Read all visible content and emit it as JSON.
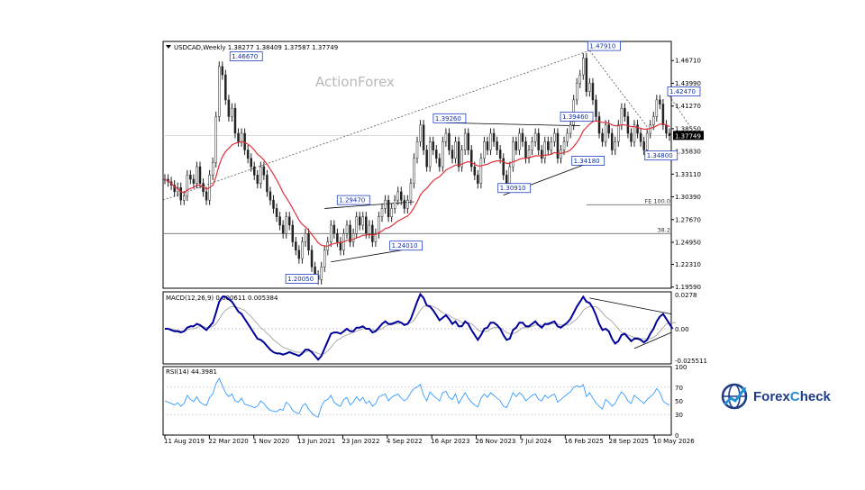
{
  "chart_data": [
    {
      "type": "line",
      "panel": "price",
      "symbol_label": "USDCAD,Weekly",
      "ohlc_label": "1.38277 1.38409 1.37587 1.37749",
      "watermark": "ActionForex",
      "last_price": "1.37749",
      "y_ticks": [
        "1.46710",
        "1.43990",
        "1.41270",
        "1.38550",
        "1.35830",
        "1.33110",
        "1.30390",
        "1.27670",
        "1.24950",
        "1.22310",
        "1.19590"
      ],
      "ylim": [
        1.1945,
        1.49
      ],
      "x_ticks": [
        "11 Aug 2019",
        "22 Mar 2020",
        "1 Nov 2020",
        "13 Jun 2021",
        "23 Jan 2022",
        "4 Sep 2022",
        "16 Apr 2023",
        "26 Nov 2023",
        "7 Jul 2024",
        "16 Feb 2025",
        "28 Sep 2025",
        "10 May 2026"
      ],
      "series": [
        {
          "values": [
            1.325,
            1.322,
            1.318,
            1.31,
            1.315,
            1.3,
            1.305,
            1.33,
            1.325,
            1.32,
            1.34,
            1.32,
            1.31,
            1.3,
            1.33,
            1.345,
            1.4,
            1.46,
            1.45,
            1.42,
            1.4,
            1.41,
            1.38,
            1.37,
            1.38,
            1.36,
            1.35,
            1.34,
            1.33,
            1.32,
            1.34,
            1.33,
            1.31,
            1.3,
            1.29,
            1.28,
            1.27,
            1.26,
            1.28,
            1.27,
            1.25,
            1.24,
            1.23,
            1.25,
            1.26,
            1.24,
            1.22,
            1.21,
            1.205,
            1.22,
            1.24,
            1.25,
            1.27,
            1.26,
            1.25,
            1.24,
            1.26,
            1.27,
            1.25,
            1.26,
            1.28,
            1.27,
            1.28,
            1.26,
            1.27,
            1.25,
            1.26,
            1.28,
            1.29,
            1.3,
            1.28,
            1.29,
            1.3,
            1.31,
            1.3,
            1.29,
            1.3,
            1.32,
            1.35,
            1.37,
            1.39,
            1.36,
            1.34,
            1.37,
            1.36,
            1.35,
            1.34,
            1.37,
            1.38,
            1.36,
            1.35,
            1.37,
            1.34,
            1.36,
            1.38,
            1.36,
            1.34,
            1.33,
            1.32,
            1.35,
            1.37,
            1.36,
            1.38,
            1.37,
            1.36,
            1.35,
            1.33,
            1.32,
            1.34,
            1.37,
            1.36,
            1.38,
            1.37,
            1.35,
            1.36,
            1.37,
            1.38,
            1.36,
            1.35,
            1.37,
            1.36,
            1.37,
            1.38,
            1.35,
            1.36,
            1.37,
            1.38,
            1.39,
            1.42,
            1.44,
            1.45,
            1.47,
            1.43,
            1.44,
            1.42,
            1.4,
            1.38,
            1.37,
            1.39,
            1.38,
            1.36,
            1.37,
            1.39,
            1.41,
            1.4,
            1.38,
            1.37,
            1.39,
            1.38,
            1.37,
            1.36,
            1.38,
            1.39,
            1.4,
            1.42,
            1.415,
            1.39,
            1.38,
            1.377
          ]
        },
        {
          "name": "",
          "color": "#e0303a",
          "values": [
            1.325,
            1.323,
            1.32,
            1.316,
            1.314,
            1.31,
            1.309,
            1.312,
            1.314,
            1.315,
            1.318,
            1.318,
            1.316,
            1.313,
            1.315,
            1.318,
            1.328,
            1.342,
            1.352,
            1.358,
            1.362,
            1.366,
            1.368,
            1.369,
            1.37,
            1.369,
            1.367,
            1.364,
            1.36,
            1.355,
            1.352,
            1.348,
            1.343,
            1.337,
            1.331,
            1.324,
            1.317,
            1.309,
            1.303,
            1.297,
            1.29,
            1.283,
            1.276,
            1.271,
            1.268,
            1.264,
            1.259,
            1.254,
            1.249,
            1.246,
            1.245,
            1.245,
            1.247,
            1.248,
            1.249,
            1.249,
            1.25,
            1.252,
            1.252,
            1.253,
            1.255,
            1.256,
            1.258,
            1.258,
            1.259,
            1.258,
            1.259,
            1.261,
            1.263,
            1.266,
            1.267,
            1.269,
            1.272,
            1.275,
            1.277,
            1.279,
            1.281,
            1.285,
            1.291,
            1.298,
            1.306,
            1.311,
            1.314,
            1.319,
            1.323,
            1.326,
            1.328,
            1.332,
            1.336,
            1.338,
            1.34,
            1.342,
            1.342,
            1.343,
            1.345,
            1.346,
            1.345,
            1.343,
            1.341,
            1.341,
            1.342,
            1.343,
            1.345,
            1.346,
            1.347,
            1.347,
            1.346,
            1.344,
            1.344,
            1.346,
            1.347,
            1.349,
            1.35,
            1.35,
            1.351,
            1.352,
            1.353,
            1.353,
            1.353,
            1.354,
            1.354,
            1.355,
            1.357,
            1.356,
            1.356,
            1.357,
            1.358,
            1.36,
            1.364,
            1.369,
            1.375,
            1.383,
            1.387,
            1.391,
            1.394,
            1.395,
            1.394,
            1.393,
            1.393,
            1.392,
            1.39,
            1.389,
            1.389,
            1.39,
            1.39,
            1.389,
            1.388,
            1.388,
            1.387,
            1.386,
            1.385,
            1.385,
            1.386,
            1.387,
            1.389,
            1.391,
            1.391,
            1.39,
            1.388
          ]
        }
      ],
      "annotations": [
        {
          "text": "1.46670",
          "x": 17,
          "y": 1.4667,
          "anchor": "start",
          "dx": 12
        },
        {
          "text": "1.20050",
          "x": 48,
          "y": 1.2005,
          "anchor": "start",
          "dx": -36
        },
        {
          "text": "1.29470",
          "x": 63,
          "y": 1.2947,
          "anchor": "start",
          "dx": -32
        },
        {
          "text": "1.24010",
          "x": 71,
          "y": 1.2401,
          "anchor": "start",
          "dx": -2
        },
        {
          "text": "1.39260",
          "x": 88,
          "y": 1.3926,
          "anchor": "start",
          "dx": -14
        },
        {
          "text": "1.30910",
          "x": 106,
          "y": 1.3091,
          "anchor": "start",
          "dx": -6
        },
        {
          "text": "1.39460",
          "x": 125,
          "y": 1.3946,
          "anchor": "start",
          "dx": -4
        },
        {
          "text": "1.34180",
          "x": 128,
          "y": 1.3418,
          "anchor": "start",
          "dx": -2
        },
        {
          "text": "1.47910",
          "x": 133,
          "y": 1.4791,
          "anchor": "start",
          "dx": -2
        },
        {
          "text": "1.34800",
          "x": 152,
          "y": 1.348,
          "anchor": "start",
          "dx": -6
        },
        {
          "text": "1.42470",
          "x": 158,
          "y": 1.4247,
          "anchor": "start",
          "dx": -2
        },
        {
          "text": "FE 100.0",
          "x": 162,
          "y": 1.2945,
          "anchor": "end",
          "dx": 0
        },
        {
          "text": "38.2",
          "x": 162,
          "y": 1.26,
          "anchor": "end",
          "dx": 0
        }
      ]
    },
    {
      "type": "line",
      "panel": "macd",
      "label": "MACD(12,26,9) 0.000611 0.005384",
      "y_ticks": [
        "0.0278",
        "0.00",
        "-0.025511"
      ],
      "ylim": [
        -0.0285,
        0.03
      ],
      "series": [
        {
          "color": "#000099",
          "values": [
            0.0,
            0.0,
            -0.001,
            -0.002,
            -0.002,
            -0.003,
            -0.002,
            0.001,
            0.002,
            0.002,
            0.004,
            0.003,
            0.001,
            -0.001,
            0.002,
            0.005,
            0.013,
            0.022,
            0.026,
            0.026,
            0.024,
            0.022,
            0.018,
            0.014,
            0.012,
            0.008,
            0.004,
            0.0,
            -0.004,
            -0.008,
            -0.009,
            -0.011,
            -0.014,
            -0.017,
            -0.019,
            -0.02,
            -0.02,
            -0.021,
            -0.02,
            -0.019,
            -0.02,
            -0.021,
            -0.022,
            -0.02,
            -0.017,
            -0.017,
            -0.019,
            -0.022,
            -0.025,
            -0.022,
            -0.016,
            -0.01,
            -0.004,
            -0.003,
            -0.003,
            -0.004,
            -0.002,
            0.0,
            -0.002,
            -0.002,
            0.001,
            0.001,
            0.002,
            0.0,
            0.0,
            -0.003,
            -0.002,
            0.001,
            0.004,
            0.006,
            0.004,
            0.004,
            0.005,
            0.006,
            0.005,
            0.003,
            0.004,
            0.008,
            0.015,
            0.022,
            0.028,
            0.025,
            0.019,
            0.018,
            0.015,
            0.011,
            0.007,
            0.009,
            0.011,
            0.008,
            0.004,
            0.006,
            0.002,
            0.002,
            0.006,
            0.004,
            -0.001,
            -0.005,
            -0.009,
            -0.005,
            0.0,
            0.001,
            0.005,
            0.005,
            0.003,
            0.0,
            -0.005,
            -0.009,
            -0.008,
            -0.001,
            0.001,
            0.005,
            0.005,
            0.002,
            0.002,
            0.004,
            0.006,
            0.003,
            0.001,
            0.004,
            0.004,
            0.005,
            0.006,
            0.002,
            0.001,
            0.003,
            0.005,
            0.008,
            0.013,
            0.018,
            0.022,
            0.026,
            0.022,
            0.021,
            0.017,
            0.011,
            0.004,
            -0.001,
            0.0,
            -0.002,
            -0.008,
            -0.012,
            -0.01,
            -0.005,
            -0.004,
            -0.007,
            -0.01,
            -0.008,
            -0.008,
            -0.009,
            -0.011,
            -0.009,
            -0.004,
            0.0,
            0.006,
            0.01,
            0.012,
            0.008,
            0.004,
            0.0
          ]
        },
        {
          "color": "#999999",
          "values": [
            0.0,
            0.0,
            0.0,
            -0.001,
            -0.001,
            -0.002,
            -0.002,
            -0.001,
            0.0,
            0.0,
            0.001,
            0.002,
            0.002,
            0.001,
            0.001,
            0.002,
            0.004,
            0.008,
            0.012,
            0.015,
            0.017,
            0.018,
            0.018,
            0.017,
            0.016,
            0.015,
            0.012,
            0.01,
            0.007,
            0.004,
            0.001,
            -0.001,
            -0.004,
            -0.006,
            -0.009,
            -0.011,
            -0.013,
            -0.015,
            -0.016,
            -0.017,
            -0.018,
            -0.019,
            -0.019,
            -0.019,
            -0.019,
            -0.018,
            -0.018,
            -0.019,
            -0.02,
            -0.021,
            -0.02,
            -0.018,
            -0.015,
            -0.012,
            -0.009,
            -0.008,
            -0.006,
            -0.005,
            -0.004,
            -0.003,
            -0.002,
            -0.001,
            0.0,
            0.0,
            0.0,
            -0.001,
            -0.001,
            -0.001,
            0.0,
            0.002,
            0.003,
            0.003,
            0.004,
            0.004,
            0.005,
            0.004,
            0.004,
            0.005,
            0.007,
            0.011,
            0.015,
            0.018,
            0.019,
            0.019,
            0.018,
            0.017,
            0.015,
            0.013,
            0.012,
            0.011,
            0.009,
            0.008,
            0.007,
            0.005,
            0.005,
            0.005,
            0.004,
            0.002,
            -0.001,
            -0.002,
            -0.002,
            -0.002,
            0.0,
            0.001,
            0.001,
            0.001,
            -0.001,
            -0.003,
            -0.004,
            -0.004,
            -0.003,
            -0.001,
            0.001,
            0.001,
            0.001,
            0.002,
            0.003,
            0.003,
            0.003,
            0.003,
            0.003,
            0.004,
            0.004,
            0.004,
            0.003,
            0.003,
            0.003,
            0.004,
            0.006,
            0.008,
            0.011,
            0.015,
            0.017,
            0.018,
            0.018,
            0.018,
            0.016,
            0.013,
            0.01,
            0.008,
            0.006,
            0.003,
            0.0,
            -0.003,
            -0.004,
            -0.005,
            -0.006,
            -0.007,
            -0.007,
            -0.008,
            -0.008,
            -0.008,
            -0.008,
            -0.007,
            -0.005,
            -0.002,
            0.001,
            0.004,
            0.005,
            0.005,
            0.005
          ]
        }
      ]
    },
    {
      "type": "line",
      "panel": "rsi",
      "label": "RSI(14) 44.3981",
      "y_ticks": [
        "100",
        "70",
        "50",
        "30",
        "0"
      ],
      "ylim": [
        0,
        100
      ],
      "series": [
        {
          "color": "#1e90ff",
          "values": [
            50,
            48,
            46,
            44,
            47,
            42,
            46,
            58,
            52,
            49,
            56,
            48,
            45,
            43,
            55,
            60,
            75,
            83,
            72,
            62,
            56,
            60,
            50,
            48,
            54,
            45,
            44,
            42,
            40,
            42,
            50,
            46,
            40,
            36,
            35,
            34,
            38,
            36,
            48,
            44,
            36,
            33,
            31,
            42,
            46,
            38,
            32,
            28,
            26,
            42,
            50,
            52,
            58,
            48,
            44,
            42,
            52,
            55,
            44,
            48,
            56,
            50,
            55,
            46,
            50,
            42,
            46,
            56,
            58,
            60,
            50,
            55,
            58,
            60,
            54,
            50,
            54,
            62,
            68,
            70,
            74,
            58,
            50,
            63,
            58,
            54,
            50,
            62,
            64,
            55,
            52,
            60,
            46,
            54,
            62,
            54,
            48,
            44,
            41,
            54,
            60,
            55,
            62,
            58,
            54,
            50,
            42,
            40,
            50,
            62,
            56,
            62,
            58,
            50,
            54,
            58,
            60,
            52,
            50,
            58,
            54,
            58,
            60,
            48,
            52,
            56,
            60,
            63,
            70,
            72,
            70,
            74,
            56,
            62,
            54,
            47,
            42,
            38,
            52,
            48,
            42,
            46,
            56,
            63,
            58,
            50,
            46,
            58,
            54,
            50,
            46,
            52,
            56,
            60,
            68,
            62,
            50,
            46,
            44
          ]
        }
      ]
    }
  ]
}
